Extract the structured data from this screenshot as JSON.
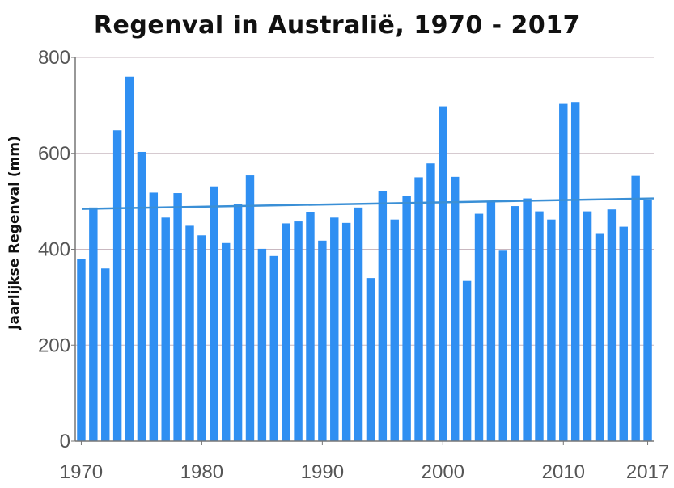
{
  "chart_data": {
    "type": "bar",
    "title": "Regenval in Australië, 1970 - 2017",
    "xlabel": "",
    "ylabel": "Jaarlijkse Regenval (mm)",
    "ylim": [
      0,
      800
    ],
    "yticks": [
      0,
      200,
      400,
      600,
      800
    ],
    "xticks": [
      1970,
      1980,
      1990,
      2000,
      2010,
      2017
    ],
    "grid": true,
    "bar_color": "#2f8ff2",
    "trend_color": "#3a8fd6",
    "categories": [
      1970,
      1971,
      1972,
      1973,
      1974,
      1975,
      1976,
      1977,
      1978,
      1979,
      1980,
      1981,
      1982,
      1983,
      1984,
      1985,
      1986,
      1987,
      1988,
      1989,
      1990,
      1991,
      1992,
      1993,
      1994,
      1995,
      1996,
      1997,
      1998,
      1999,
      2000,
      2001,
      2002,
      2003,
      2004,
      2005,
      2006,
      2007,
      2008,
      2009,
      2010,
      2011,
      2012,
      2013,
      2014,
      2015,
      2016,
      2017
    ],
    "values": [
      380,
      487,
      360,
      648,
      760,
      603,
      518,
      466,
      517,
      449,
      429,
      531,
      413,
      495,
      554,
      401,
      386,
      454,
      458,
      478,
      418,
      466,
      455,
      487,
      340,
      521,
      462,
      512,
      550,
      579,
      698,
      551,
      334,
      474,
      499,
      397,
      490,
      506,
      479,
      462,
      703,
      707,
      479,
      432,
      483,
      447,
      553,
      503
    ],
    "trend": {
      "start": 484,
      "end": 506
    }
  }
}
